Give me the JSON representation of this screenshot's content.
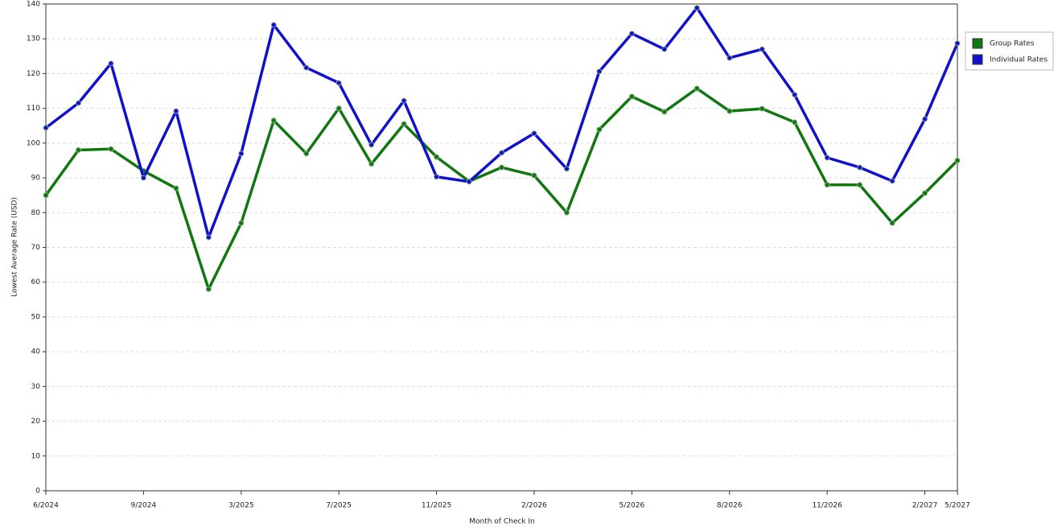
{
  "chart_data": {
    "type": "line",
    "x_label": "Month of Check In",
    "y_label": "Lowest Average Rate (USD)",
    "categories": [
      "6/2024",
      null,
      null,
      "9/2024",
      null,
      null,
      "3/2025",
      null,
      null,
      "7/2025",
      null,
      null,
      "11/2025",
      null,
      null,
      "2/2026",
      null,
      null,
      "5/2026",
      null,
      null,
      "8/2026",
      null,
      null,
      "11/2026",
      null,
      null,
      "2/2027",
      "5/2027"
    ],
    "series": [
      {
        "name": "Group Rates",
        "color": "#117711",
        "values": [
          85,
          98,
          98.3,
          92,
          87,
          58,
          77,
          106.5,
          97,
          110,
          94,
          105.5,
          96,
          89,
          93,
          90.7,
          80,
          103.9,
          113.4,
          109,
          115.7,
          109.2,
          109.9,
          106,
          88,
          88,
          77,
          85.6,
          95
        ]
      },
      {
        "name": "Individual Rates",
        "color": "#1111cc",
        "values": [
          104.4,
          111.5,
          122.9,
          90,
          109.2,
          72.9,
          97,
          134,
          121.7,
          117.3,
          99.5,
          112.2,
          90.3,
          88.9,
          97.2,
          102.8,
          92.6,
          120.6,
          131.5,
          127,
          138.9,
          124.5,
          127,
          113.9,
          95.8,
          93,
          89.1,
          106.9,
          128.7
        ]
      }
    ],
    "ylim": [
      0,
      140
    ],
    "yticks": [
      0,
      10,
      20,
      30,
      40,
      50,
      60,
      70,
      80,
      90,
      100,
      110,
      120,
      130,
      140
    ],
    "grid": true,
    "legend": "right"
  }
}
